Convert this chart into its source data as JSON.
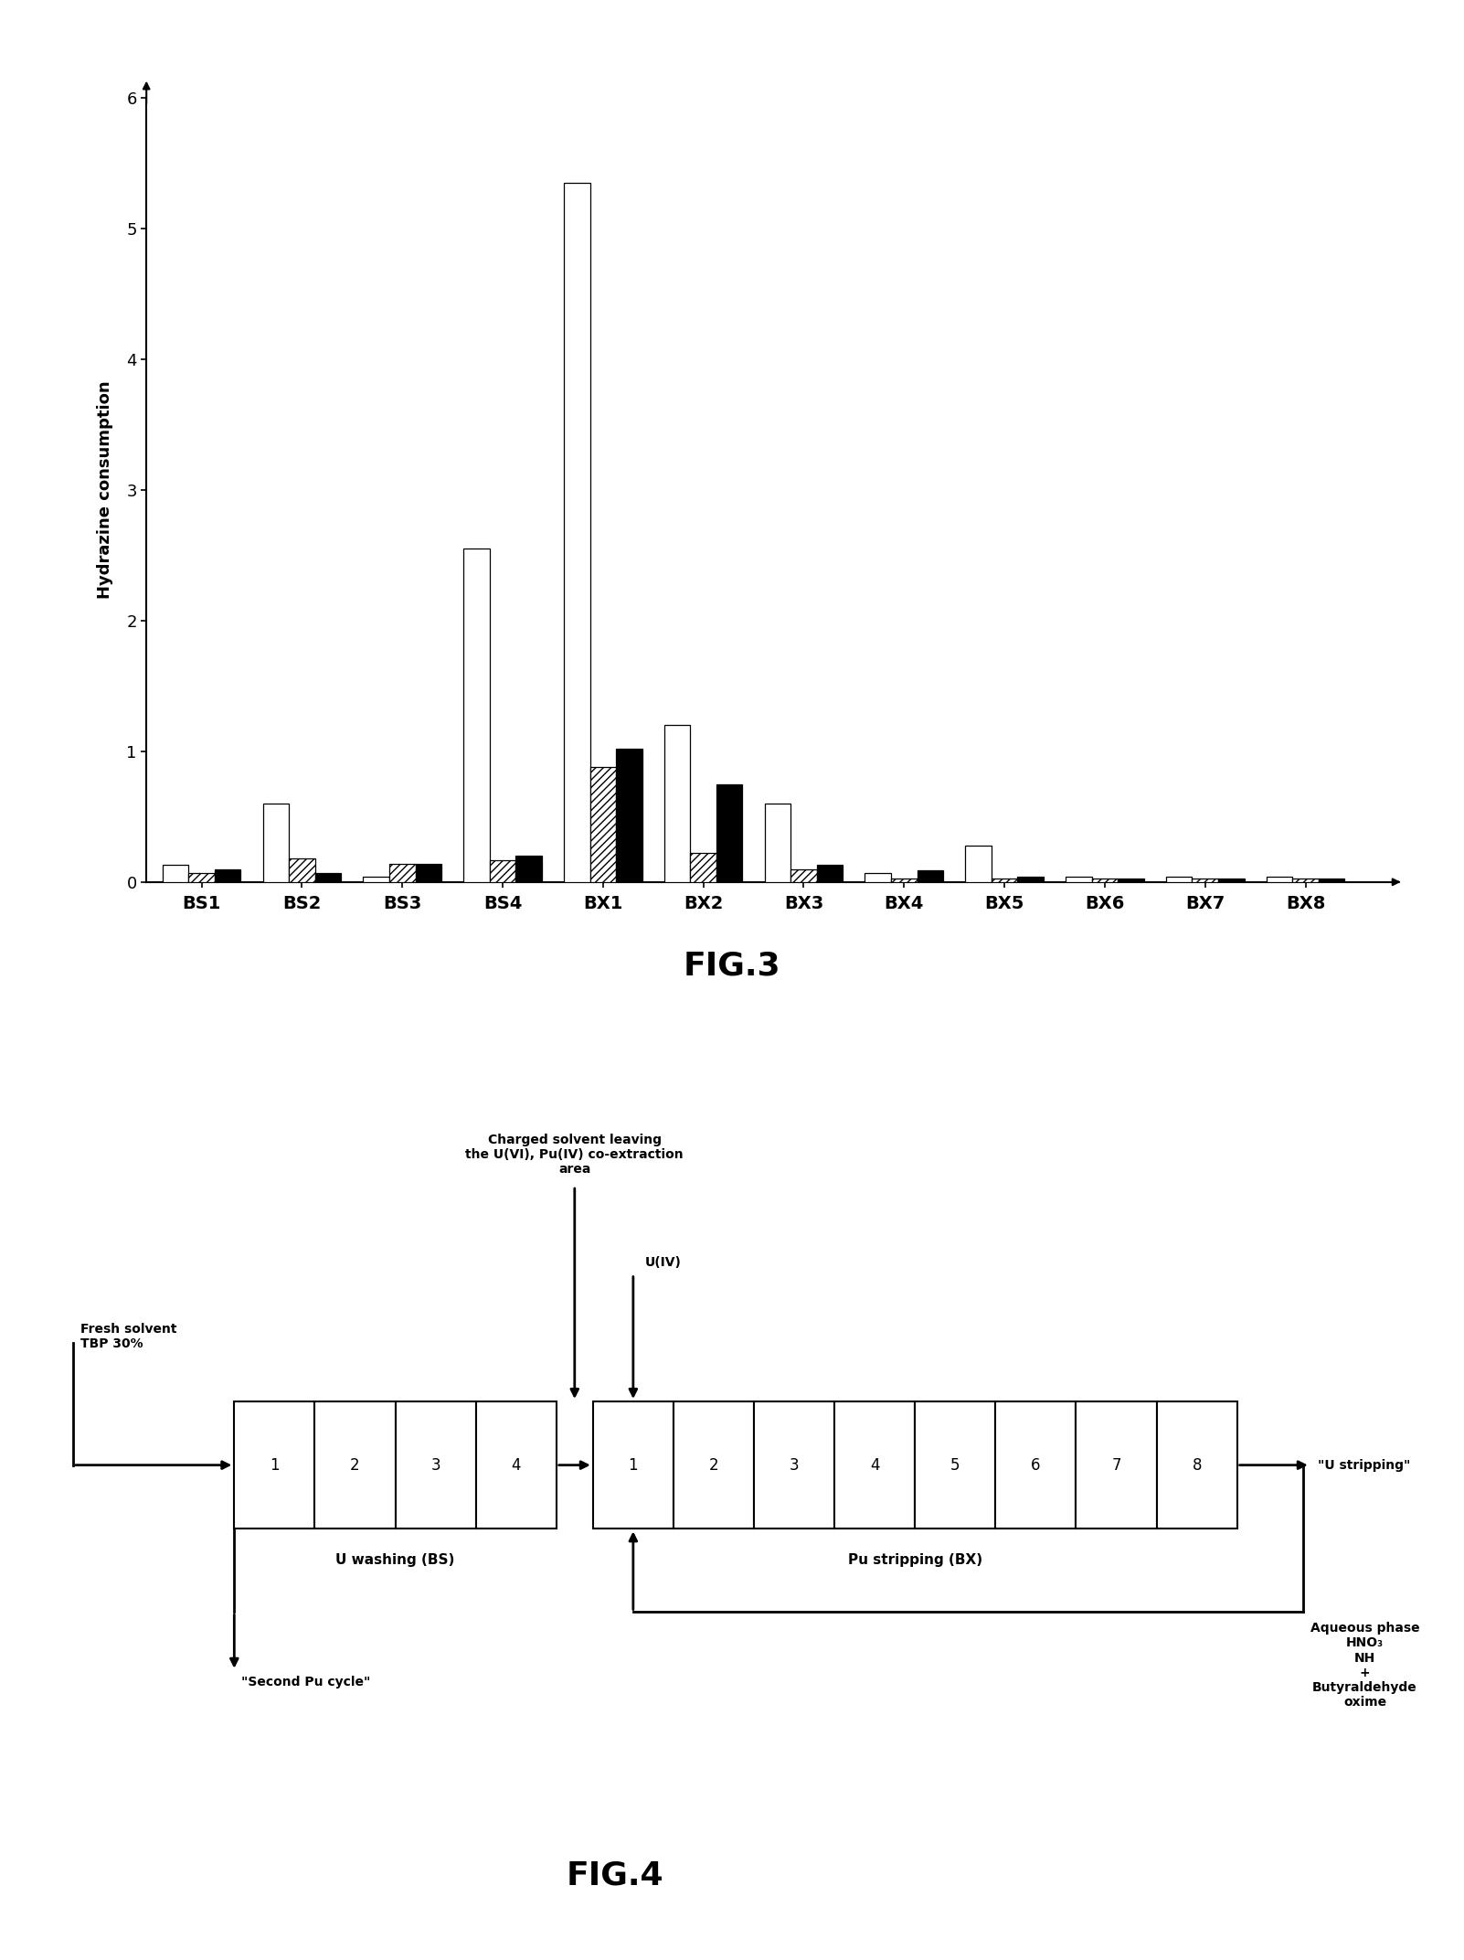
{
  "categories": [
    "BS1",
    "BS2",
    "BS3",
    "BS4",
    "BX1",
    "BX2",
    "BX3",
    "BX4",
    "BX5",
    "BX6",
    "BX7",
    "BX8"
  ],
  "series_white": [
    0.13,
    0.6,
    0.04,
    2.55,
    5.35,
    1.2,
    0.6,
    0.07,
    0.28,
    0.04,
    0.04,
    0.04
  ],
  "series_hatch": [
    0.07,
    0.18,
    0.14,
    0.17,
    0.88,
    0.22,
    0.1,
    0.03,
    0.03,
    0.03,
    0.03,
    0.03
  ],
  "series_black": [
    0.1,
    0.07,
    0.14,
    0.2,
    1.02,
    0.75,
    0.13,
    0.09,
    0.04,
    0.03,
    0.03,
    0.03
  ],
  "ylabel": "Hydrazine consumption",
  "ylim": [
    0,
    6
  ],
  "yticks": [
    0,
    1,
    2,
    3,
    4,
    5,
    6
  ],
  "fig3_label": "FIG.3",
  "fig4_label": "FIG.4",
  "background_color": "#ffffff"
}
